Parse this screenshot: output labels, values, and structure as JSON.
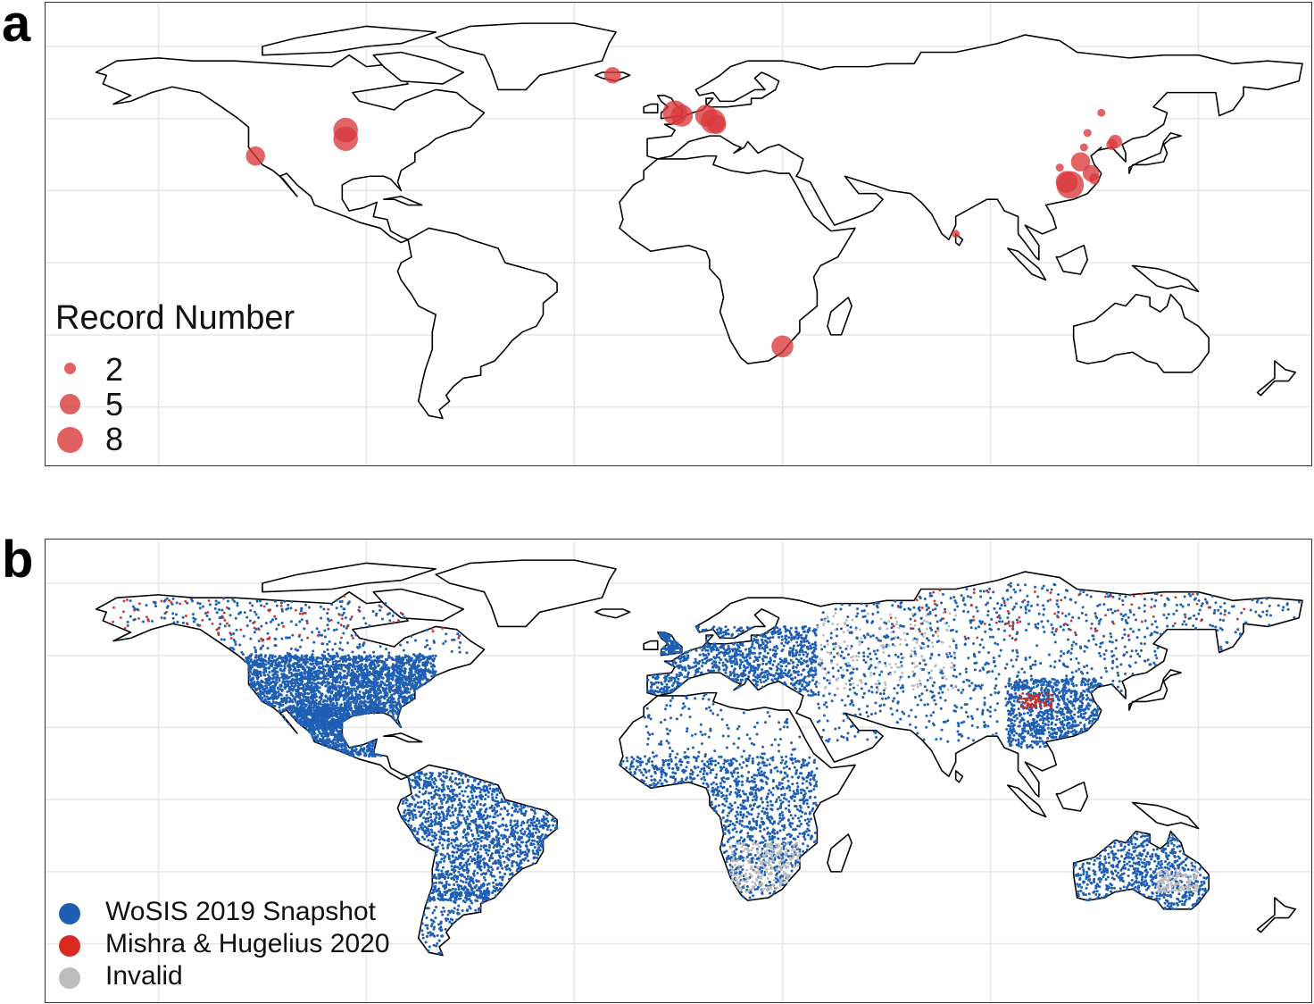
{
  "panels": {
    "a": {
      "letter": "a"
    },
    "b": {
      "letter": "b"
    }
  },
  "legend_a": {
    "title": "Record Number",
    "items": [
      {
        "label": "2",
        "value": 2
      },
      {
        "label": "5",
        "value": 5
      },
      {
        "label": "8",
        "value": 8
      }
    ],
    "color": "#d9393c"
  },
  "legend_b": {
    "items": [
      {
        "label": "WoSIS 2019 Snapshot",
        "color": "#1e5fb4"
      },
      {
        "label": "Mishra & Hugelius 2020",
        "color": "#d92b1f"
      },
      {
        "label": "Invalid",
        "color": "#bdbdbd"
      }
    ]
  },
  "colors": {
    "land_outline": "#000000",
    "grid": "#e6e6e6",
    "record_point": "#d9393c"
  },
  "record_points": [
    {
      "lon": -122,
      "lat": 37,
      "n": 5
    },
    {
      "lon": -96,
      "lat": 46,
      "n": 7
    },
    {
      "lon": -96,
      "lat": 43,
      "n": 7
    },
    {
      "lon": -19,
      "lat": 65,
      "n": 4
    },
    {
      "lon": -1,
      "lat": 52,
      "n": 7
    },
    {
      "lon": 1,
      "lat": 51,
      "n": 6
    },
    {
      "lon": 8,
      "lat": 51,
      "n": 6
    },
    {
      "lon": 10,
      "lat": 49,
      "n": 7
    },
    {
      "lon": 11,
      "lat": 48,
      "n": 5
    },
    {
      "lon": 30,
      "lat": -29,
      "n": 6
    },
    {
      "lon": 80,
      "lat": 10,
      "n": 1
    },
    {
      "lon": 113,
      "lat": 27,
      "n": 8
    },
    {
      "lon": 112,
      "lat": 28,
      "n": 6
    },
    {
      "lon": 116,
      "lat": 35,
      "n": 5
    },
    {
      "lon": 119,
      "lat": 31,
      "n": 4
    },
    {
      "lon": 126,
      "lat": 42,
      "n": 3
    },
    {
      "lon": 125,
      "lat": 41,
      "n": 2
    },
    {
      "lon": 118,
      "lat": 45,
      "n": 1
    },
    {
      "lon": 122,
      "lat": 52,
      "n": 1
    },
    {
      "lon": 117,
      "lat": 40,
      "n": 1
    },
    {
      "lon": 110,
      "lat": 33,
      "n": 1
    },
    {
      "lon": 120,
      "lat": 29,
      "n": 2
    }
  ]
}
